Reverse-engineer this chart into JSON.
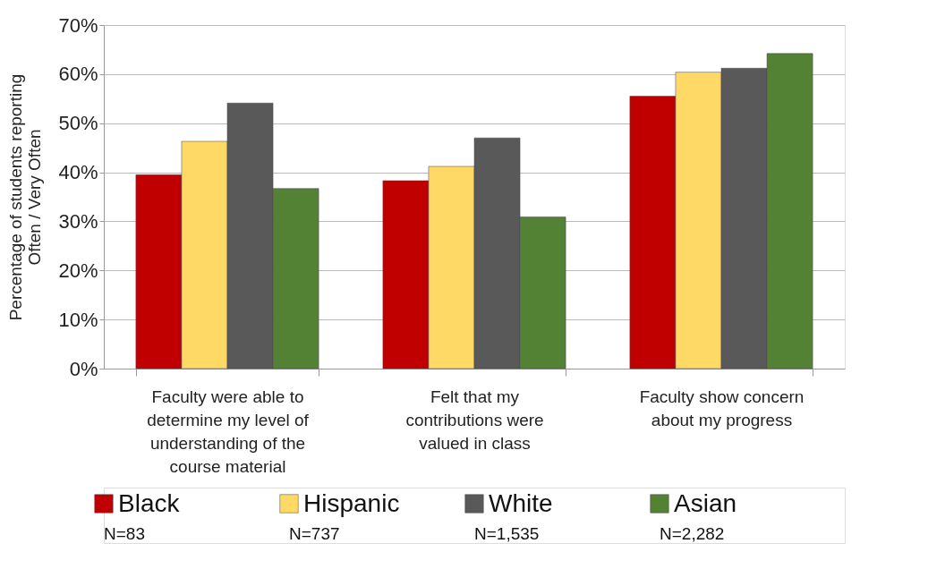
{
  "chart_data": {
    "type": "bar",
    "ylabel": "Percentage of students reporting Often / Very Often",
    "categories": [
      "Faculty were able to determine my level of understanding of the course material",
      "Felt that my contributions were valued in class",
      "Faculty show concern about my progress"
    ],
    "series": [
      {
        "name": "Black",
        "color": "#c00000",
        "values": [
          39.5,
          38.3,
          55.5
        ]
      },
      {
        "name": "Hispanic",
        "color": "#ffd966",
        "values": [
          46.3,
          41.2,
          60.4
        ]
      },
      {
        "name": "White",
        "color": "#595959",
        "values": [
          54.1,
          47.0,
          61.2
        ]
      },
      {
        "name": "Asian",
        "color": "#548235",
        "values": [
          36.7,
          30.9,
          64.2
        ]
      }
    ],
    "ylim": [
      0,
      70
    ],
    "yticks": [
      {
        "value": 0,
        "label": "0%"
      },
      {
        "value": 10,
        "label": "10%"
      },
      {
        "value": 20,
        "label": "20%"
      },
      {
        "value": 30,
        "label": "30%"
      },
      {
        "value": 40,
        "label": "40%"
      },
      {
        "value": 50,
        "label": "50%"
      },
      {
        "value": 60,
        "label": "60%"
      },
      {
        "value": 70,
        "label": "70%"
      }
    ],
    "grid": "y",
    "legend": "bottom",
    "annotations": [
      "N=83",
      "N=737",
      "N=1,535",
      "N=2,282"
    ]
  }
}
